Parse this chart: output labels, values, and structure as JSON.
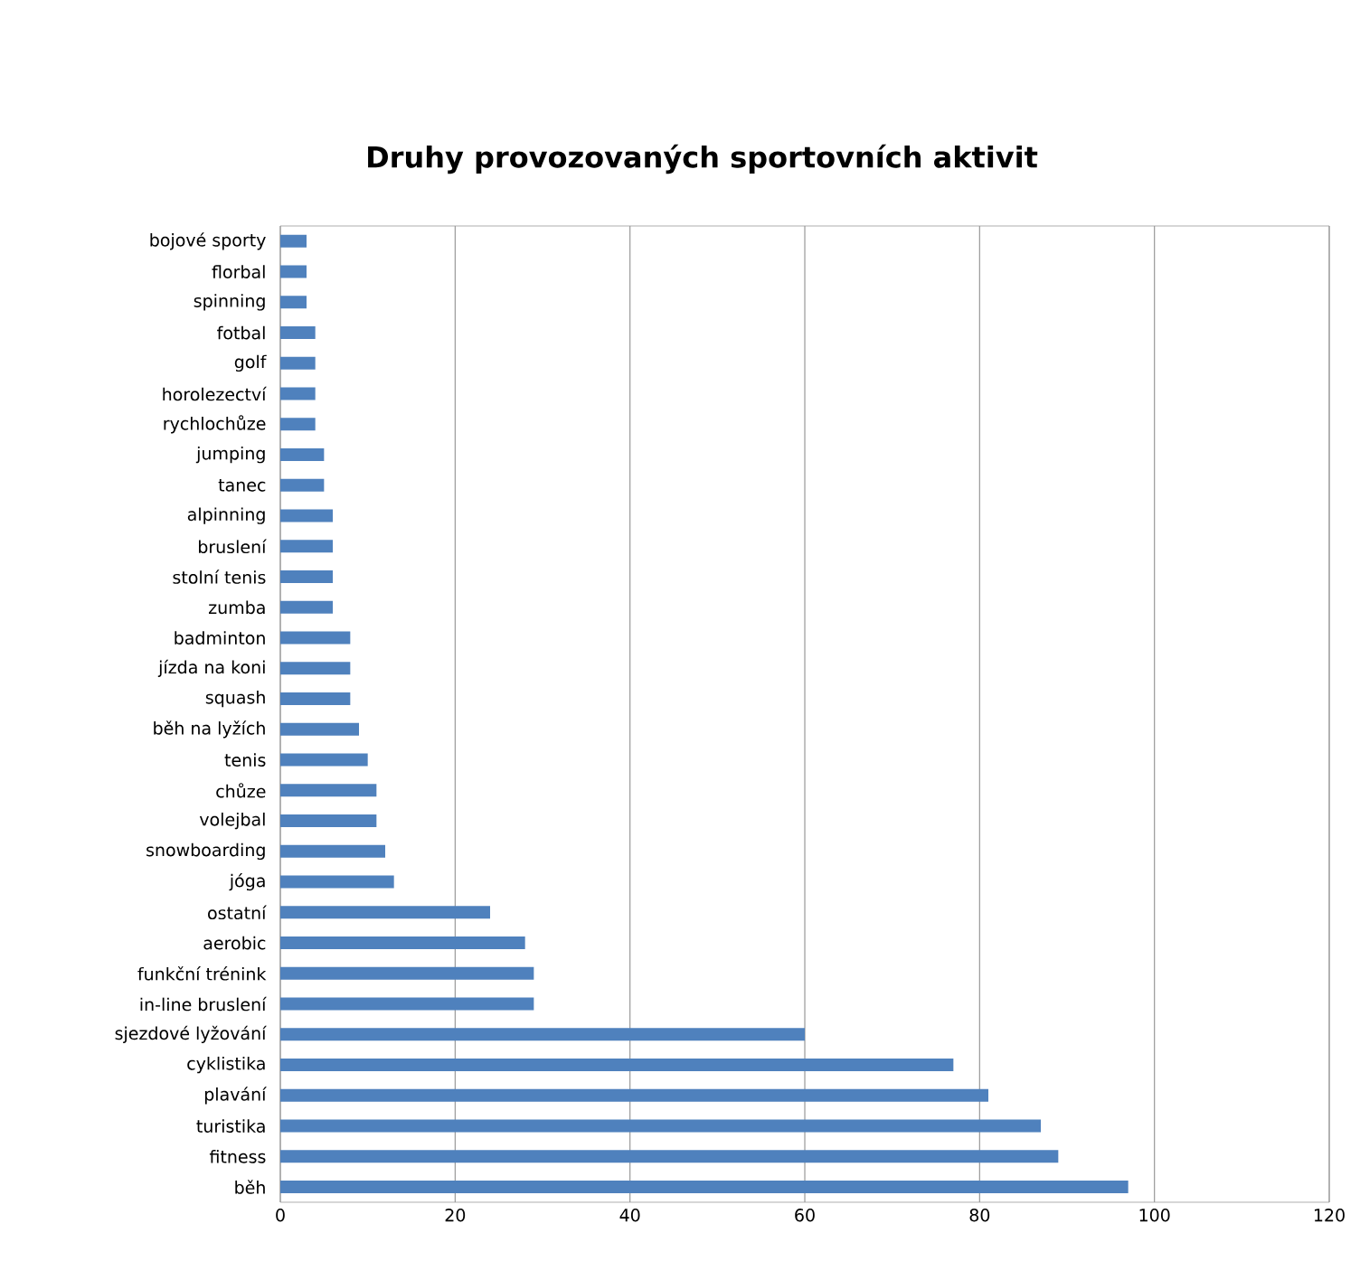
{
  "chart_data": {
    "type": "bar",
    "orientation": "horizontal",
    "title": "Druhy provozovaných sportovních aktivit",
    "categories": [
      "bojové sporty",
      "florbal",
      "spinning",
      "fotbal",
      "golf",
      "horolezectví",
      "rychlochůze",
      "jumping",
      "tanec",
      "alpinning",
      "bruslení",
      "stolní tenis",
      "zumba",
      "badminton",
      "jízda na koni",
      "squash",
      "běh na lyžích",
      "tenis",
      "chůze",
      "volejbal",
      "snowboarding",
      "jóga",
      "ostatní",
      "aerobic",
      "funkční trénink",
      "in-line bruslení",
      "sjezdové lyžování",
      "cyklistika",
      "plavání",
      "turistika",
      "fitness",
      "běh"
    ],
    "values": [
      3,
      3,
      3,
      4,
      4,
      4,
      4,
      5,
      5,
      6,
      6,
      6,
      6,
      8,
      8,
      8,
      9,
      10,
      11,
      11,
      12,
      13,
      24,
      28,
      29,
      29,
      60,
      77,
      81,
      87,
      89,
      97
    ],
    "color": "#4f81bd",
    "xlim": [
      0,
      120
    ],
    "xticks": [
      0,
      20,
      40,
      60,
      80,
      100,
      120
    ],
    "grid": "x"
  }
}
